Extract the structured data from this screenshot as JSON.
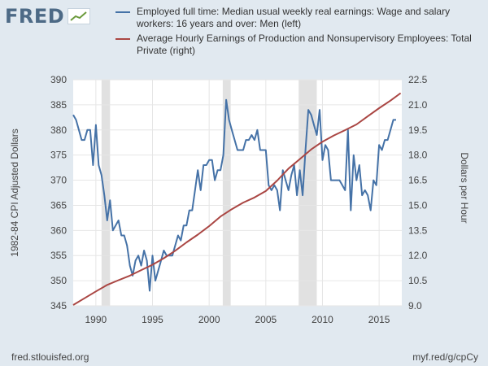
{
  "brand": {
    "name": "FRED"
  },
  "footer": {
    "source": "fred.stlouisfed.org",
    "short_link": "myf.red/g/cpCy"
  },
  "colors": {
    "left_series": "#4572a7",
    "right_series": "#aa4643",
    "recession": "#e1e1e1",
    "background": "#e1e9f0",
    "plot_bg": "#ffffff"
  },
  "chart_data": {
    "type": "line",
    "xlabel": "",
    "x_ticks": [
      1990,
      1995,
      2000,
      2005,
      2010,
      2015
    ],
    "xlim": [
      1988,
      2017
    ],
    "ylabel": "1982-84 CPI Adjusted Dollars",
    "ylim": [
      345,
      390
    ],
    "y_ticks": [
      345,
      350,
      355,
      360,
      365,
      370,
      375,
      380,
      385,
      390
    ],
    "y2label": "Dollars per Hour",
    "y2lim": [
      9.0,
      22.5
    ],
    "y2_tick_labels": [
      "9.0",
      "10.5",
      "12.0",
      "13.5",
      "15.0",
      "16.5",
      "18.0",
      "19.5",
      "21.0",
      "22.5"
    ],
    "grid": true,
    "legend_placement": "top",
    "recessions": [
      [
        1990.5,
        1991.25
      ],
      [
        2001.2,
        2001.9
      ],
      [
        2007.9,
        2009.5
      ]
    ],
    "series": [
      {
        "name": "Employed full time: Median usual weekly real earnings: Wage and salary workers: 16 years and over: Men (left)",
        "axis": "left",
        "x": [
          1988.0,
          1988.25,
          1988.5,
          1988.75,
          1989.0,
          1989.25,
          1989.5,
          1989.75,
          1990.0,
          1990.25,
          1990.5,
          1990.75,
          1991.0,
          1991.25,
          1991.5,
          1991.75,
          1992.0,
          1992.25,
          1992.5,
          1992.75,
          1993.0,
          1993.25,
          1993.5,
          1993.75,
          1994.0,
          1994.25,
          1994.5,
          1994.75,
          1995.0,
          1995.25,
          1995.5,
          1995.75,
          1996.0,
          1996.25,
          1996.5,
          1996.75,
          1997.0,
          1997.25,
          1997.5,
          1997.75,
          1998.0,
          1998.25,
          1998.5,
          1998.75,
          1999.0,
          1999.25,
          1999.5,
          1999.75,
          2000.0,
          2000.25,
          2000.5,
          2000.75,
          2001.0,
          2001.25,
          2001.5,
          2001.75,
          2002.0,
          2002.25,
          2002.5,
          2002.75,
          2003.0,
          2003.25,
          2003.5,
          2003.75,
          2004.0,
          2004.25,
          2004.5,
          2004.75,
          2005.0,
          2005.25,
          2005.5,
          2005.75,
          2006.0,
          2006.25,
          2006.5,
          2006.75,
          2007.0,
          2007.25,
          2007.5,
          2007.75,
          2008.0,
          2008.25,
          2008.5,
          2008.75,
          2009.0,
          2009.25,
          2009.5,
          2009.75,
          2010.0,
          2010.25,
          2010.5,
          2010.75,
          2011.0,
          2011.25,
          2011.5,
          2011.75,
          2012.0,
          2012.25,
          2012.5,
          2012.75,
          2013.0,
          2013.25,
          2013.5,
          2013.75,
          2014.0,
          2014.25,
          2014.5,
          2014.75,
          2015.0,
          2015.25,
          2015.5,
          2015.75,
          2016.0,
          2016.25,
          2016.5
        ],
        "values": [
          383,
          382,
          380,
          378,
          378,
          380,
          380,
          373,
          381,
          373,
          371,
          367,
          362,
          366,
          360,
          361,
          362,
          359,
          359,
          357,
          353,
          351,
          354,
          355,
          353,
          356,
          354,
          348,
          355,
          350,
          352,
          354,
          356,
          355,
          355,
          355,
          357,
          359,
          358,
          361,
          361,
          364,
          364,
          368,
          372,
          368,
          373,
          373,
          374,
          374,
          370,
          372,
          372,
          375,
          386,
          382,
          380,
          378,
          376,
          376,
          376,
          378,
          378,
          379,
          378,
          380,
          376,
          376,
          376,
          369,
          368,
          369,
          368,
          364,
          372,
          370,
          368,
          371,
          373,
          367,
          372,
          367,
          376,
          384,
          383,
          381,
          379,
          384,
          374,
          377,
          376,
          370,
          370,
          370,
          370,
          369,
          368,
          380,
          364,
          375,
          370,
          373,
          367,
          368,
          367,
          364,
          370,
          369,
          377,
          376,
          378,
          378,
          380,
          382,
          382
        ]
      },
      {
        "name": "Average Hourly Earnings of Production and Nonsupervisory Employees: Total Private (right)",
        "axis": "right",
        "x": [
          1988.0,
          1989.0,
          1990.0,
          1991.0,
          1992.0,
          1993.0,
          1994.0,
          1995.0,
          1996.0,
          1997.0,
          1998.0,
          1999.0,
          2000.0,
          2001.0,
          2002.0,
          2003.0,
          2004.0,
          2005.0,
          2006.0,
          2007.0,
          2008.0,
          2009.0,
          2010.0,
          2011.0,
          2012.0,
          2013.0,
          2014.0,
          2015.0,
          2016.0,
          2016.9
        ],
        "values": [
          9.05,
          9.45,
          9.86,
          10.25,
          10.53,
          10.8,
          11.13,
          11.45,
          11.84,
          12.29,
          12.79,
          13.25,
          13.76,
          14.33,
          14.77,
          15.16,
          15.47,
          15.85,
          16.48,
          17.19,
          17.76,
          18.34,
          18.8,
          19.17,
          19.49,
          19.83,
          20.32,
          20.8,
          21.25,
          21.7
        ]
      }
    ]
  }
}
